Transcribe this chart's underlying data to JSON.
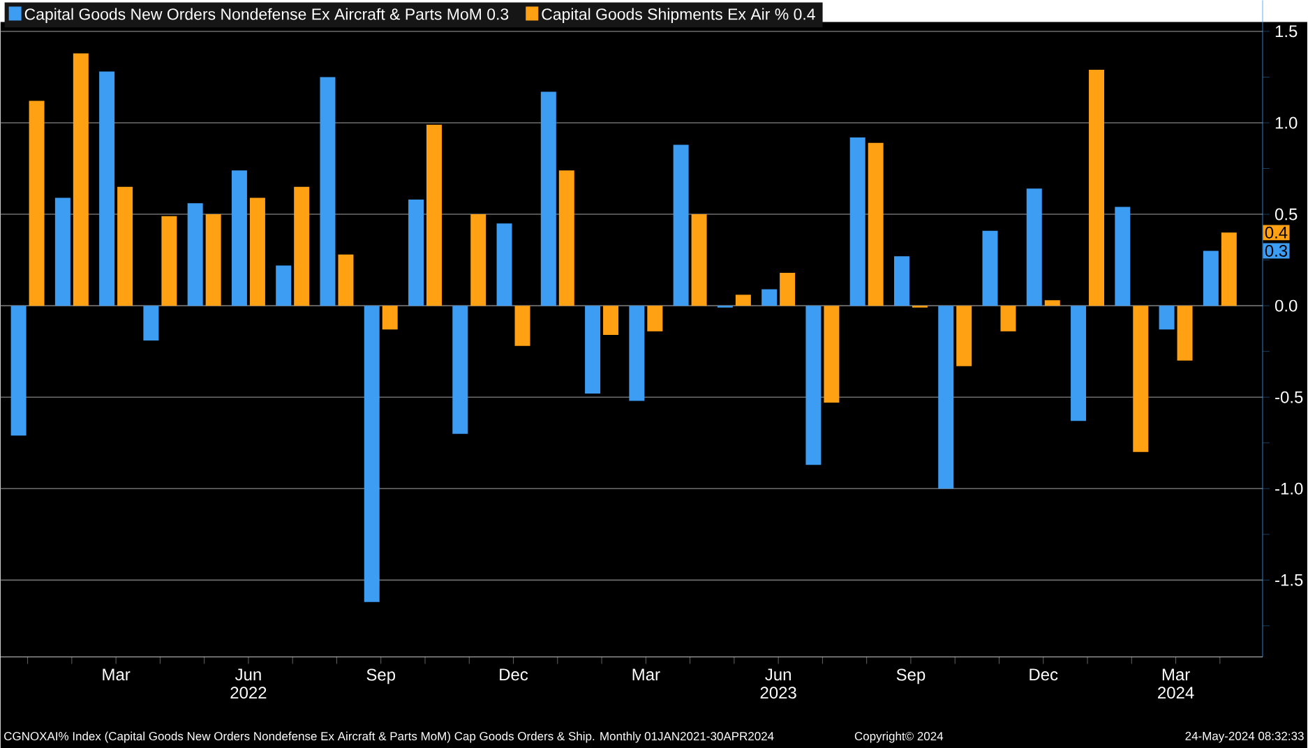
{
  "chart_data": {
    "type": "bar",
    "x": [
      "2022-01",
      "2022-02",
      "2022-03",
      "2022-04",
      "2022-05",
      "2022-06",
      "2022-07",
      "2022-08",
      "2022-09",
      "2022-10",
      "2022-11",
      "2022-12",
      "2023-01",
      "2023-02",
      "2023-03",
      "2023-04",
      "2023-05",
      "2023-06",
      "2023-07",
      "2023-08",
      "2023-09",
      "2023-10",
      "2023-11",
      "2023-12",
      "2024-01",
      "2024-02",
      "2024-03",
      "2024-04"
    ],
    "series": [
      {
        "name": "Capital Goods New Orders Nondefense Ex Aircraft & Parts MoM 0.3",
        "color": "#3d9df3",
        "values": [
          -0.71,
          0.59,
          1.28,
          -0.19,
          0.56,
          0.74,
          0.22,
          1.25,
          -1.62,
          0.58,
          -0.7,
          0.45,
          1.17,
          -0.48,
          -0.52,
          0.88,
          -0.01,
          0.09,
          -0.87,
          0.92,
          0.27,
          -1.0,
          0.41,
          0.64,
          -0.63,
          0.54,
          -0.13,
          0.3
        ]
      },
      {
        "name": "Capital Goods Shipments Ex Air % 0.4",
        "color": "#ffa113",
        "values": [
          1.12,
          1.38,
          0.65,
          0.49,
          0.5,
          0.59,
          0.65,
          0.28,
          -0.13,
          0.99,
          0.5,
          -0.22,
          0.74,
          -0.16,
          -0.14,
          0.5,
          0.06,
          0.18,
          -0.53,
          0.89,
          -0.01,
          -0.33,
          -0.14,
          0.03,
          1.29,
          -0.8,
          -0.3,
          0.4
        ]
      }
    ],
    "xlim": [
      "2021-12-13",
      "2024-04-30"
    ],
    "xticks": [
      {
        "value": "2022-01",
        "label": null
      },
      {
        "value": "2022-02",
        "label": null
      },
      {
        "value": "2022-03",
        "label": "Mar"
      },
      {
        "value": "2022-04",
        "label": null
      },
      {
        "value": "2022-05",
        "label": null
      },
      {
        "value": "2022-06",
        "label": "Jun 2022"
      },
      {
        "value": "2022-07",
        "label": null
      },
      {
        "value": "2022-08",
        "label": null
      },
      {
        "value": "2022-09",
        "label": "Sep"
      },
      {
        "value": "2022-10",
        "label": null
      },
      {
        "value": "2022-11",
        "label": null
      },
      {
        "value": "2022-12",
        "label": "Dec"
      },
      {
        "value": "2023-01",
        "label": null
      },
      {
        "value": "2023-02",
        "label": null
      },
      {
        "value": "2023-03",
        "label": "Mar"
      },
      {
        "value": "2023-04",
        "label": null
      },
      {
        "value": "2023-05",
        "label": null
      },
      {
        "value": "2023-06",
        "label": "Jun 2023"
      },
      {
        "value": "2023-07",
        "label": null
      },
      {
        "value": "2023-08",
        "label": null
      },
      {
        "value": "2023-09",
        "label": "Sep"
      },
      {
        "value": "2023-10",
        "label": null
      },
      {
        "value": "2023-11",
        "label": null
      },
      {
        "value": "2023-12",
        "label": "Dec"
      },
      {
        "value": "2024-01",
        "label": null
      },
      {
        "value": "2024-02",
        "label": null
      },
      {
        "value": "2024-03",
        "label": "Mar 2024"
      },
      {
        "value": "2024-04",
        "label": null
      }
    ],
    "ylim": [
      -1.92,
      1.67
    ],
    "yticks": [
      {
        "value": -1.75,
        "label": null
      },
      {
        "value": -1.5,
        "label": "-1.5"
      },
      {
        "value": -1.25,
        "label": null
      },
      {
        "value": -1.0,
        "label": "-1.0"
      },
      {
        "value": -0.75,
        "label": null
      },
      {
        "value": -0.5,
        "label": "-0.5"
      },
      {
        "value": -0.25,
        "label": null
      },
      {
        "value": 0,
        "label": "0.0"
      },
      {
        "value": 0.25,
        "label": null
      },
      {
        "value": 0.5,
        "label": "0.5"
      },
      {
        "value": 0.75,
        "label": null
      },
      {
        "value": 1.0,
        "label": "1.0"
      },
      {
        "value": 1.25,
        "label": null
      },
      {
        "value": 1.5,
        "label": "1.5"
      }
    ],
    "grid": "y",
    "legend": "top left",
    "annotations": [
      {
        "text": "0.4",
        "x": "2024-04",
        "y": 0.4
      },
      {
        "text": "0.3",
        "x": "2024-04",
        "y": 0.3
      },
      "CGNOXAI% Index (Capital Goods New Orders Nondefense Ex Aircraft & Parts MoM) Cap Goods Orders & Ship.  Monthly 01JAN2021-30APR2024",
      "Copyright© 2024",
      "24-May-2024 08:32:33"
    ]
  }
}
